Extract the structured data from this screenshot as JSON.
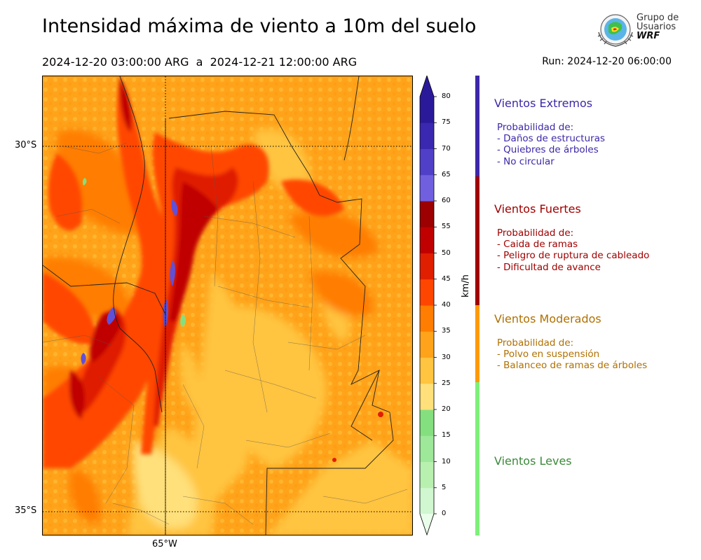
{
  "header": {
    "title": "Intensidad máxima de viento a 10m del suelo",
    "period": "2024-12-20 03:00:00 ARG  a  2024-12-21 12:00:00 ARG",
    "run": "Run: 2024-12-20 06:00:00"
  },
  "logo": {
    "line1": "Grupo de",
    "line2": "Usuarios",
    "line3": "WRF"
  },
  "map": {
    "lat_labels": [
      "30°S",
      "35°S"
    ],
    "lon_labels": [
      "65°W"
    ],
    "lat_values": [
      -30,
      -35
    ],
    "lon_values": [
      -65
    ]
  },
  "colorbar": {
    "unit": "km/h",
    "ticks": [
      "0",
      "5",
      "10",
      "15",
      "20",
      "25",
      "30",
      "35",
      "40",
      "45",
      "50",
      "55",
      "60",
      "65",
      "70",
      "75",
      "80"
    ],
    "colors": [
      "#eaffea",
      "#d0f7d0",
      "#b8f0b0",
      "#9ee89a",
      "#84e07e",
      "#ffe07a",
      "#ffc440",
      "#ffa31a",
      "#ff7d00",
      "#ff4600",
      "#e01e00",
      "#c00000",
      "#9c0000",
      "#7060e0",
      "#5040c8",
      "#3a28b0",
      "#2a1a9a"
    ]
  },
  "categories": [
    {
      "name": "Vientos Extremos",
      "color": "#3c28a8",
      "desc": "Probabilidad de:\n- Daños de estructuras\n- Quiebres de árboles\n- No circular"
    },
    {
      "name": "Vientos Fuertes",
      "color": "#a00000",
      "desc": "Probabilidad de:\n- Caida de ramas\n- Peligro de ruptura de cableado\n- Dificultad de avance"
    },
    {
      "name": "Vientos Moderados",
      "color": "#b07000",
      "desc": "Probabilidad de:\n- Polvo en suspensión\n- Balanceo de ramas de árboles"
    },
    {
      "name": "Vientos Leves",
      "color": "#3a8a3a",
      "desc": ""
    }
  ],
  "strip_colors": [
    "#3c28a8",
    "#a00000",
    "#ff9a00",
    "#7ef07a"
  ]
}
